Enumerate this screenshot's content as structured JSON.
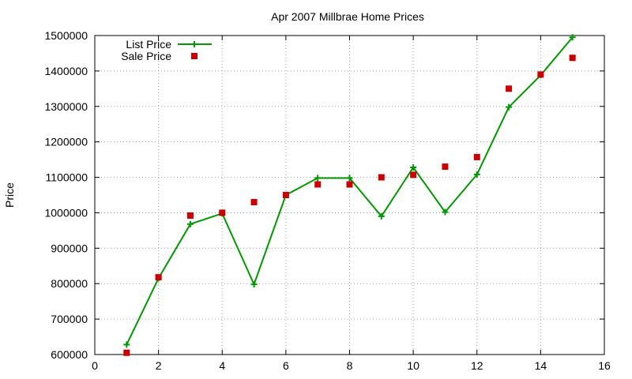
{
  "chart_data": {
    "type": "line",
    "title": "Apr 2007 Millbrae Home Prices",
    "xlabel": "",
    "ylabel": "Price",
    "xlim": [
      0,
      16
    ],
    "ylim": [
      600000,
      1500000
    ],
    "xticks": [
      0,
      2,
      4,
      6,
      8,
      10,
      12,
      14,
      16
    ],
    "yticks": [
      600000,
      700000,
      800000,
      900000,
      1000000,
      1100000,
      1200000,
      1300000,
      1400000,
      1500000
    ],
    "grid": true,
    "legend_position": "top-left",
    "series": [
      {
        "name": "List Price",
        "style": "line+cross",
        "color": "#009900",
        "x": [
          1,
          2,
          3,
          4,
          5,
          6,
          7,
          8,
          9,
          10,
          11,
          12,
          13,
          14,
          15
        ],
        "y": [
          628000,
          815000,
          968000,
          998000,
          798000,
          1050000,
          1098000,
          1098000,
          990000,
          1128000,
          1002000,
          1108000,
          1298000,
          1388000,
          1495000
        ]
      },
      {
        "name": "Sale Price",
        "style": "square-markers",
        "color": "#cc0000",
        "x": [
          1,
          2,
          3,
          4,
          5,
          6,
          7,
          8,
          9,
          10,
          11,
          12,
          13,
          14,
          15
        ],
        "y": [
          605000,
          818000,
          992000,
          1000000,
          1030000,
          1050000,
          1080000,
          1080000,
          1100000,
          1107000,
          1130000,
          1157000,
          1350000,
          1390000,
          1437000
        ]
      }
    ]
  }
}
